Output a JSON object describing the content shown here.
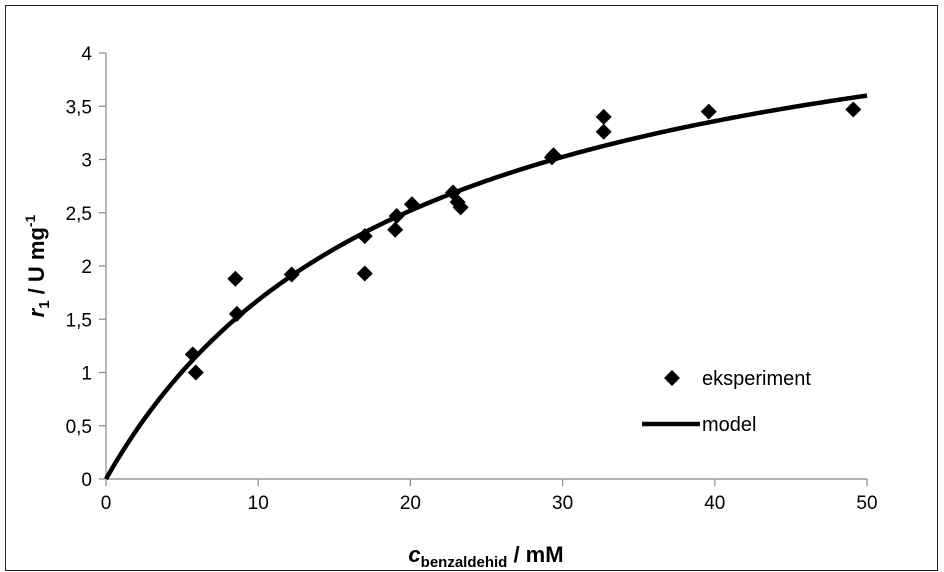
{
  "chart_data": {
    "type": "scatter",
    "xlim": [
      0,
      50
    ],
    "ylim": [
      0,
      4
    ],
    "x_ticks": [
      0,
      10,
      20,
      30,
      40,
      50
    ],
    "y_ticks": [
      0,
      0.5,
      1,
      1.5,
      2,
      2.5,
      3,
      3.5,
      4
    ],
    "x_tick_labels": [
      "0",
      "10",
      "20",
      "30",
      "40",
      "50"
    ],
    "y_tick_labels": [
      "0",
      "0,5",
      "1",
      "1,5",
      "2",
      "2,5",
      "3",
      "3,5",
      "4"
    ],
    "xlabel": {
      "main": "c",
      "sub": "benzaldehid",
      "rest": " / mM"
    },
    "ylabel": {
      "main": "r",
      "sub": "1",
      "rest": " / U mg",
      "sup": "-1"
    },
    "grid": false,
    "legend_position": "bottom-right",
    "series": [
      {
        "name": "eksperiment",
        "type": "scatter",
        "marker": "diamond",
        "color": "#000000",
        "points": [
          [
            5.7,
            1.17
          ],
          [
            5.9,
            1.0
          ],
          [
            8.5,
            1.88
          ],
          [
            8.6,
            1.55
          ],
          [
            12.2,
            1.92
          ],
          [
            17.0,
            2.28
          ],
          [
            17.0,
            1.93
          ],
          [
            19.0,
            2.34
          ],
          [
            19.1,
            2.47
          ],
          [
            20.1,
            2.58
          ],
          [
            22.8,
            2.69
          ],
          [
            23.1,
            2.6
          ],
          [
            23.3,
            2.55
          ],
          [
            29.3,
            3.02
          ],
          [
            29.4,
            3.04
          ],
          [
            32.7,
            3.4
          ],
          [
            32.7,
            3.26
          ],
          [
            39.6,
            3.45
          ],
          [
            49.1,
            3.47
          ]
        ]
      },
      {
        "name": "model",
        "type": "line",
        "color": "#000000",
        "model": {
          "vmax": 5.04,
          "km": 20.0
        }
      }
    ]
  }
}
